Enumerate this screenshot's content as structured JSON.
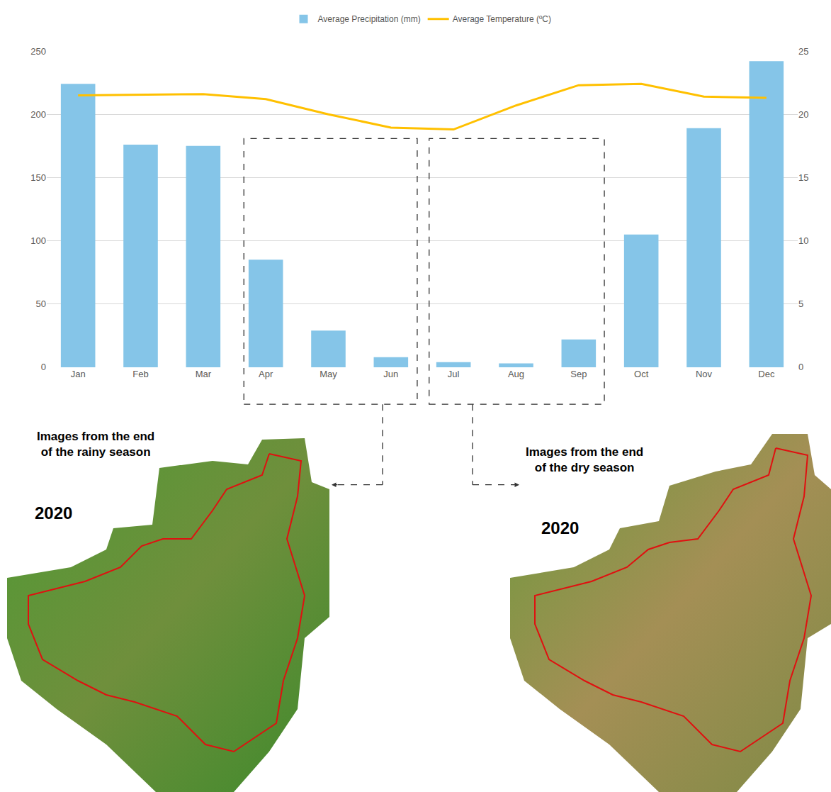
{
  "chart_data": {
    "type": "bar",
    "categories": [
      "Jan",
      "Feb",
      "Mar",
      "Apr",
      "May",
      "Jun",
      "Jul",
      "Aug",
      "Sep",
      "Oct",
      "Nov",
      "Dec"
    ],
    "series": [
      {
        "name": "Average Precipitation (mm)",
        "type": "bar",
        "color": "#85c5e8",
        "values": [
          224,
          176,
          175,
          85,
          29,
          8,
          4,
          3,
          22,
          105,
          189,
          242
        ]
      },
      {
        "name": "Average Temperature (ºC)",
        "type": "line",
        "axis": "y2",
        "color": "#ffc000",
        "values": [
          21.5,
          21.55,
          21.6,
          21.2,
          20.0,
          18.95,
          18.8,
          20.7,
          22.3,
          22.4,
          21.4,
          21.3
        ]
      }
    ],
    "ylim": [
      0,
      250
    ],
    "yticks": [
      0,
      50,
      100,
      150,
      200,
      250
    ],
    "y2lim": [
      0,
      25
    ],
    "y2ticks": [
      0,
      5,
      10,
      15,
      20,
      25
    ],
    "grid": true,
    "legend": "top"
  },
  "images": [
    {
      "caption": "Images from the end of the rainy season",
      "year": "2020"
    },
    {
      "caption": "Images from the end of the dry season",
      "year": "2020"
    }
  ]
}
